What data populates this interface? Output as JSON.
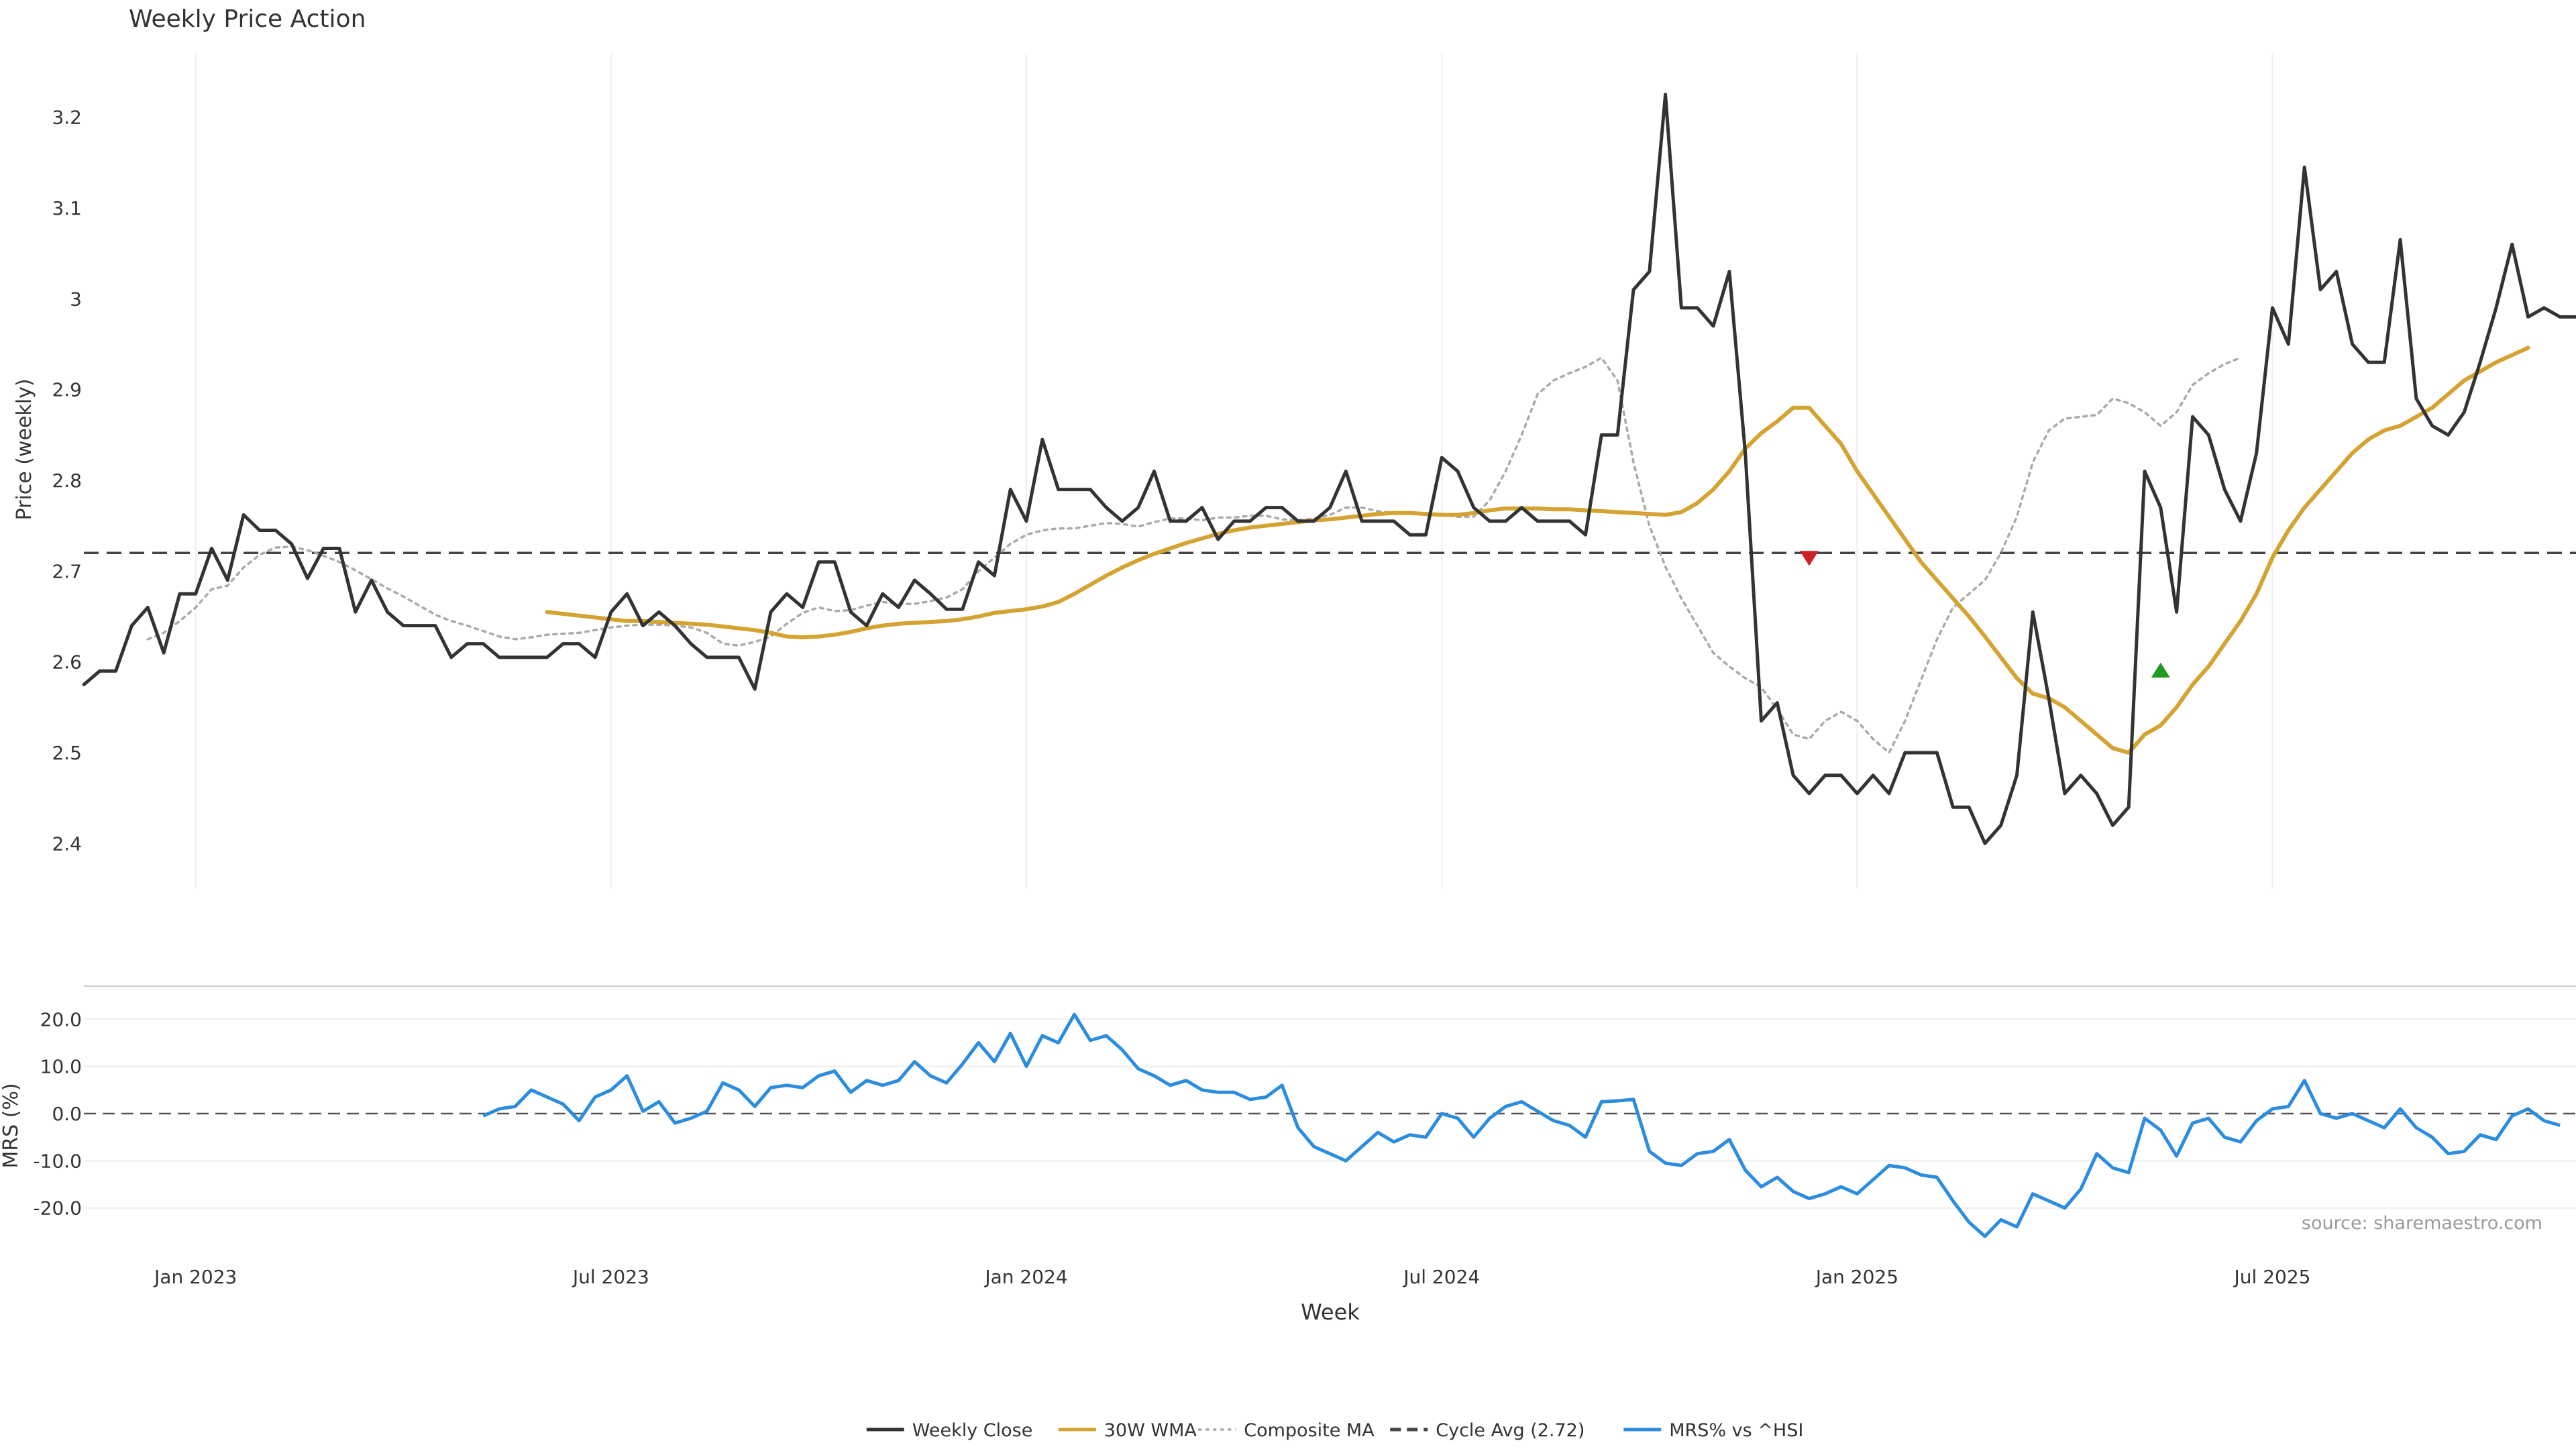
{
  "chart_data": [
    {
      "type": "line",
      "title": "Weekly Price Action",
      "xlabel": "",
      "ylabel": "Price (weekly)",
      "ylim": [
        2.35,
        3.27
      ],
      "yticks": [
        2.4,
        2.5,
        2.6,
        2.7,
        2.8,
        2.9,
        3,
        3.1,
        3.2
      ],
      "ytick_labels": [
        "2.4",
        "2.5",
        "2.6",
        "2.7",
        "2.8",
        "2.9",
        "3",
        "3.1",
        "3.2"
      ],
      "x_week_range": [
        0,
        156
      ],
      "grid": "vertical",
      "cycle_avg": 2.72,
      "series": [
        {
          "name": "Weekly Close",
          "color": "#333333",
          "start_week": 0,
          "values": [
            2.575,
            2.59,
            2.59,
            2.64,
            2.66,
            2.61,
            2.675,
            2.675,
            2.725,
            2.69,
            2.762,
            2.745,
            2.745,
            2.73,
            2.692,
            2.725,
            2.725,
            2.655,
            2.69,
            2.655,
            2.64,
            2.64,
            2.64,
            2.605,
            2.62,
            2.62,
            2.605,
            2.605,
            2.605,
            2.605,
            2.62,
            2.62,
            2.605,
            2.655,
            2.675,
            2.64,
            2.655,
            2.64,
            2.62,
            2.605,
            2.605,
            2.605,
            2.57,
            2.655,
            2.675,
            2.66,
            2.71,
            2.71,
            2.655,
            2.64,
            2.675,
            2.66,
            2.69,
            2.675,
            2.658,
            2.658,
            2.71,
            2.695,
            2.79,
            2.755,
            2.845,
            2.79,
            2.79,
            2.79,
            2.77,
            2.755,
            2.77,
            2.81,
            2.755,
            2.755,
            2.77,
            2.735,
            2.755,
            2.755,
            2.77,
            2.77,
            2.755,
            2.755,
            2.77,
            2.81,
            2.755,
            2.755,
            2.755,
            2.74,
            2.74,
            2.825,
            2.81,
            2.77,
            2.755,
            2.755,
            2.77,
            2.755,
            2.755,
            2.755,
            2.74,
            2.85,
            2.85,
            3.01,
            3.03,
            3.225,
            2.99,
            2.99,
            2.97,
            3.03,
            2.83,
            2.535,
            2.555,
            2.475,
            2.455,
            2.475,
            2.475,
            2.455,
            2.475,
            2.455,
            2.5,
            2.5,
            2.5,
            2.44,
            2.44,
            2.4,
            2.42,
            2.475,
            2.655,
            2.56,
            2.455,
            2.475,
            2.455,
            2.42,
            2.44,
            2.81,
            2.77,
            2.655,
            2.87,
            2.85,
            2.79,
            2.755,
            2.83,
            2.99,
            2.95,
            3.145,
            3.01,
            3.03,
            2.95,
            2.93,
            2.93,
            3.065,
            2.89,
            2.86,
            2.85,
            2.875,
            2.93,
            2.99,
            3.06,
            2.98,
            2.99,
            2.98,
            2.98
          ]
        },
        {
          "name": "30W WMA",
          "color": "#d4a331",
          "start_week": 29,
          "values": [
            2.655,
            2.653,
            2.651,
            2.649,
            2.647,
            2.645,
            2.645,
            2.644,
            2.643,
            2.642,
            2.641,
            2.639,
            2.637,
            2.635,
            2.632,
            2.628,
            2.627,
            2.628,
            2.63,
            2.633,
            2.637,
            2.64,
            2.642,
            2.643,
            2.644,
            2.645,
            2.647,
            2.65,
            2.654,
            2.656,
            2.658,
            2.661,
            2.666,
            2.675,
            2.685,
            2.695,
            2.704,
            2.712,
            2.719,
            2.725,
            2.731,
            2.736,
            2.741,
            2.745,
            2.748,
            2.75,
            2.752,
            2.754,
            2.756,
            2.757,
            2.759,
            2.761,
            2.763,
            2.764,
            2.764,
            2.763,
            2.762,
            2.762,
            2.764,
            2.767,
            2.769,
            2.769,
            2.769,
            2.768,
            2.768,
            2.767,
            2.766,
            2.765,
            2.764,
            2.763,
            2.762,
            2.765,
            2.775,
            2.79,
            2.81,
            2.835,
            2.852,
            2.865,
            2.88,
            2.88,
            2.86,
            2.84,
            2.81,
            2.785,
            2.76,
            2.735,
            2.71,
            2.69,
            2.67,
            2.65,
            2.628,
            2.605,
            2.582,
            2.565,
            2.56,
            2.55,
            2.535,
            2.52,
            2.505,
            2.5,
            2.52,
            2.53,
            2.55,
            2.575,
            2.595,
            2.62,
            2.645,
            2.675,
            2.715,
            2.745,
            2.77,
            2.79,
            2.81,
            2.83,
            2.845,
            2.855,
            2.86,
            2.87,
            2.88,
            2.895,
            2.91,
            2.92,
            2.93,
            2.938,
            2.946
          ]
        },
        {
          "name": "Composite MA",
          "color": "#aaaaaa",
          "start_week": 4,
          "values": [
            2.625,
            2.632,
            2.645,
            2.66,
            2.68,
            2.684,
            2.704,
            2.718,
            2.726,
            2.727,
            2.723,
            2.717,
            2.71,
            2.701,
            2.691,
            2.681,
            2.672,
            2.662,
            2.652,
            2.645,
            2.64,
            2.634,
            2.628,
            2.625,
            2.627,
            2.63,
            2.631,
            2.632,
            2.635,
            2.638,
            2.64,
            2.641,
            2.641,
            2.64,
            2.638,
            2.632,
            2.62,
            2.618,
            2.622,
            2.628,
            2.642,
            2.654,
            2.66,
            2.656,
            2.657,
            2.662,
            2.666,
            2.664,
            2.664,
            2.667,
            2.671,
            2.68,
            2.7,
            2.715,
            2.73,
            2.74,
            2.745,
            2.747,
            2.747,
            2.75,
            2.753,
            2.752,
            2.749,
            2.754,
            2.758,
            2.758,
            2.756,
            2.759,
            2.759,
            2.761,
            2.761,
            2.757,
            2.756,
            2.758,
            2.762,
            2.77,
            2.77,
            2.766,
            2.764,
            2.764,
            2.764,
            2.762,
            2.76,
            2.76,
            2.778,
            2.81,
            2.85,
            2.895,
            2.91,
            2.918,
            2.925,
            2.935,
            2.91,
            2.82,
            2.75,
            2.705,
            2.67,
            2.64,
            2.61,
            2.595,
            2.582,
            2.572,
            2.548,
            2.52,
            2.515,
            2.535,
            2.545,
            2.535,
            2.515,
            2.5,
            2.535,
            2.58,
            2.625,
            2.66,
            2.675,
            2.69,
            2.72,
            2.76,
            2.82,
            2.855,
            2.868,
            2.87,
            2.872,
            2.89,
            2.885,
            2.875,
            2.86,
            2.875,
            2.905,
            2.918,
            2.928,
            2.935
          ]
        }
      ],
      "markers": [
        {
          "type": "sell",
          "week": 108,
          "price": 2.715,
          "color": "#cc2222"
        },
        {
          "type": "buy",
          "week": 130,
          "price": 2.59,
          "color": "#229922"
        }
      ]
    },
    {
      "type": "line",
      "title": "",
      "xlabel": "Week",
      "ylabel": "MRS (%)",
      "ylim": [
        -27,
        27
      ],
      "yticks": [
        -20,
        -10,
        0,
        10,
        20
      ],
      "ytick_labels": [
        "-20.0",
        "-10.0",
        "0.0",
        "10.0",
        "20.0"
      ],
      "x_week_range": [
        0,
        156
      ],
      "grid": "horizontal",
      "x_tick_weeks": [
        7,
        33,
        59,
        85,
        111,
        137
      ],
      "x_tick_labels": [
        "Jan 2023",
        "Jul 2023",
        "Jan 2024",
        "Jul 2024",
        "Jan 2025",
        "Jul 2025"
      ],
      "series": [
        {
          "name": "MRS% vs ^HSI",
          "color": "#2b8ce0",
          "start_week": 25,
          "values": [
            -0.5,
            1,
            1.5,
            5,
            3.5,
            2,
            -1.5,
            3.5,
            5,
            8,
            0.5,
            2.5,
            -2,
            -1,
            0.5,
            6.5,
            5,
            1.5,
            5.5,
            6,
            5.5,
            8,
            9,
            4.5,
            7,
            6,
            7,
            11,
            8,
            6.5,
            10.5,
            15,
            11,
            17,
            10,
            16.5,
            15,
            21,
            15.5,
            16.5,
            13.5,
            9.5,
            8,
            6,
            7,
            5,
            4.5,
            4.5,
            3,
            3.5,
            6,
            -3,
            -7,
            -8.5,
            -10,
            -7,
            -4,
            -6,
            -4.5,
            -5,
            0,
            -1,
            -5,
            -1,
            1.5,
            2.5,
            0.5,
            -1.5,
            -2.5,
            -5,
            2.5,
            2.7,
            3,
            -8,
            -10.5,
            -11,
            -8.5,
            -8,
            -5.5,
            -12,
            -15.5,
            -13.5,
            -16.5,
            -18,
            -17,
            -15.5,
            -17,
            -14,
            -11,
            -11.5,
            -13,
            -13.5,
            -18.5,
            -23,
            -26,
            -22.5,
            -24,
            -17,
            -18.5,
            -20,
            -16,
            -8.5,
            -11.5,
            -12.5,
            -1,
            -3.5,
            -9,
            -2,
            -1,
            -5,
            -6,
            -1.5,
            1,
            1.5,
            7,
            0,
            -1,
            0,
            -1.5,
            -3,
            1,
            -3,
            -5,
            -8.5,
            -8,
            -4.5,
            -5.5,
            -0.5,
            1,
            -1.5,
            -2.5
          ]
        }
      ],
      "reference_line": 0
    }
  ],
  "legend": {
    "items": [
      {
        "label": "Weekly Close",
        "color": "#333333",
        "style": "solid"
      },
      {
        "label": "30W WMA",
        "color": "#d4a331",
        "style": "solid"
      },
      {
        "label": "Composite MA",
        "color": "#aaaaaa",
        "style": "dotted"
      },
      {
        "label": "Cycle Avg (2.72)",
        "color": "#444444",
        "style": "dashed"
      },
      {
        "label": "MRS% vs ^HSI",
        "color": "#2b8ce0",
        "style": "solid"
      }
    ]
  },
  "source_text": "source: sharemaestro.com"
}
